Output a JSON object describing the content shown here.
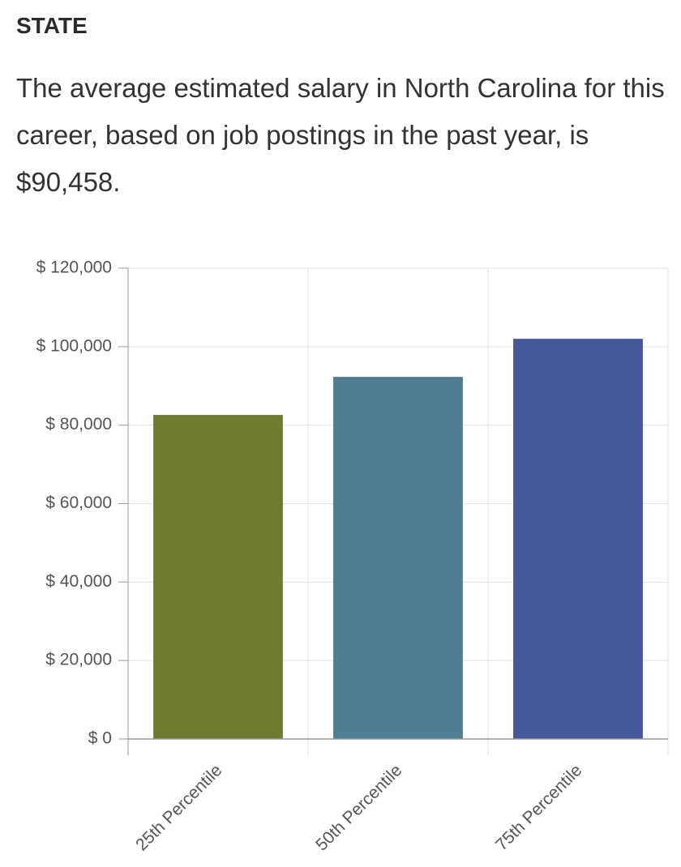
{
  "header": {
    "label": "STATE",
    "description": "The average estimated salary in North Carolina for this career, based on job postings in the past year, is $90,458."
  },
  "chart_data": {
    "type": "bar",
    "categories": [
      "25th Percentile",
      "50th Percentile",
      "75th Percentile"
    ],
    "values": [
      82600,
      92300,
      102000
    ],
    "colors": [
      "#717b2f",
      "#4f7d91",
      "#45589b"
    ],
    "ylim": [
      0,
      120000
    ],
    "yticks": [
      {
        "value": 0,
        "label": "$ 0"
      },
      {
        "value": 20000,
        "label": "$ 20,000"
      },
      {
        "value": 40000,
        "label": "$ 40,000"
      },
      {
        "value": 60000,
        "label": "$ 60,000"
      },
      {
        "value": 80000,
        "label": "$ 80,000"
      },
      {
        "value": 100000,
        "label": "$ 100,000"
      },
      {
        "value": 120000,
        "label": "$ 120,000"
      }
    ],
    "grid": true
  }
}
